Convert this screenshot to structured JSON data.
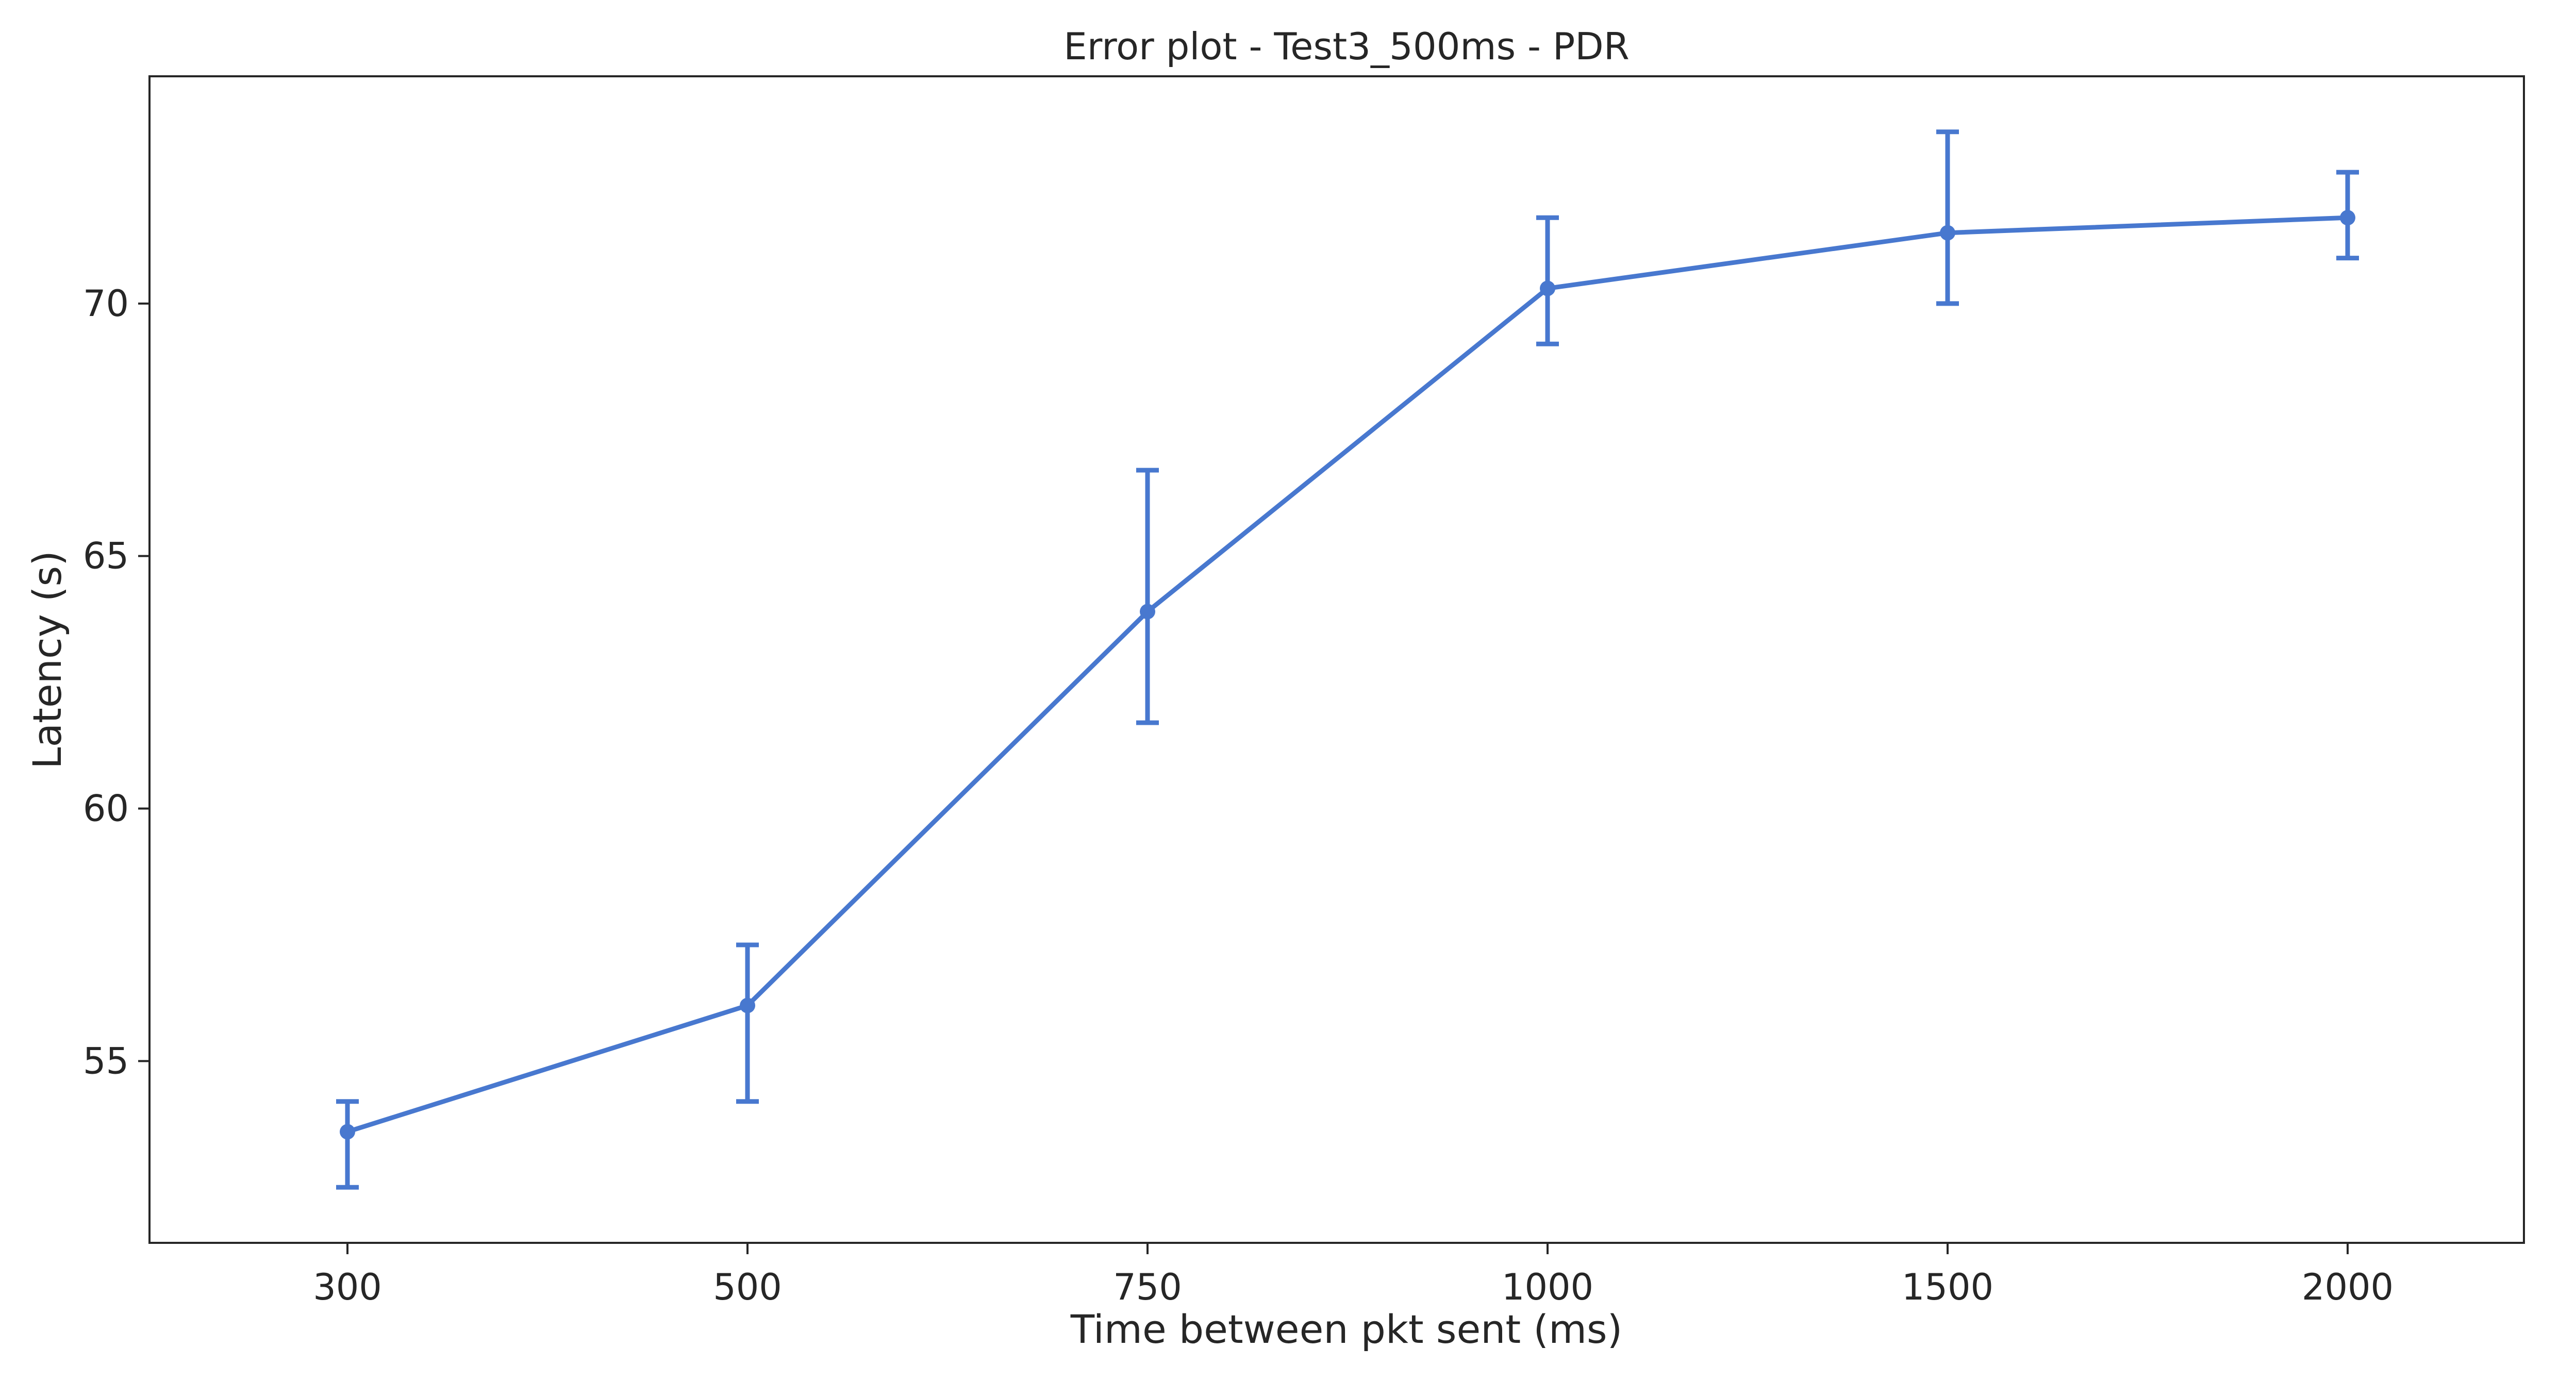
{
  "chart_data": {
    "type": "line",
    "title": "Error plot - Test3_500ms - PDR",
    "xlabel": "Time between pkt sent (ms)",
    "ylabel": "Latency (s)",
    "categories": [
      "300",
      "500",
      "750",
      "1000",
      "1500",
      "2000"
    ],
    "yticks": [
      "55",
      "60",
      "65",
      "70"
    ],
    "ylim": [
      51.4,
      74.5
    ],
    "grid": false,
    "legend": "none",
    "series": [
      {
        "values": [
          53.6,
          56.1,
          63.9,
          70.3,
          71.4,
          71.7
        ],
        "error_low": [
          52.5,
          54.2,
          61.7,
          69.2,
          70.0,
          70.9
        ],
        "error_high": [
          54.2,
          57.3,
          66.7,
          71.7,
          73.4,
          72.6
        ],
        "color": "#4878cf"
      }
    ]
  }
}
